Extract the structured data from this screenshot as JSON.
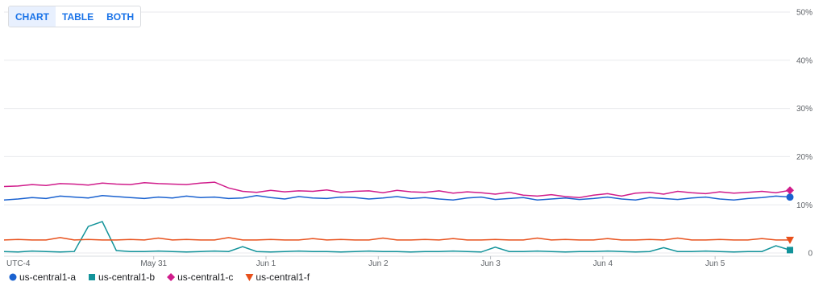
{
  "view_buttons": [
    "CHART",
    "TABLE",
    "BOTH"
  ],
  "selected_view": "CHART",
  "chart_data": {
    "type": "line",
    "timezone_label": "UTC-4",
    "x": [
      0,
      3,
      6,
      9,
      12,
      15,
      18,
      21,
      24,
      27,
      30,
      33,
      36,
      39,
      42,
      45,
      48,
      51,
      54,
      57,
      60,
      63,
      66,
      69,
      72,
      75,
      78,
      81,
      84,
      87,
      90,
      93,
      96,
      99,
      102,
      105,
      108,
      111,
      114,
      117,
      120,
      123,
      126,
      129,
      132,
      135,
      138,
      141,
      144,
      147,
      150,
      153,
      156,
      159,
      162,
      165,
      168
    ],
    "xlim": [
      0,
      168
    ],
    "xticks": [
      {
        "value": 32,
        "label": "May 31"
      },
      {
        "value": 56,
        "label": "Jun 1"
      },
      {
        "value": 80,
        "label": "Jun 2"
      },
      {
        "value": 104,
        "label": "Jun 3"
      },
      {
        "value": 128,
        "label": "Jun 4"
      },
      {
        "value": 152,
        "label": "Jun 5"
      }
    ],
    "ylim": [
      0,
      50
    ],
    "yticks": [
      {
        "value": 0,
        "label": "0"
      },
      {
        "value": 10,
        "label": "10%"
      },
      {
        "value": 20,
        "label": "20%"
      },
      {
        "value": 30,
        "label": "30%"
      },
      {
        "value": 40,
        "label": "40%"
      },
      {
        "value": 50,
        "label": "50%"
      }
    ],
    "grid": true,
    "series": [
      {
        "name": "us-central1-a",
        "color": "#1a62d0",
        "marker": "circle",
        "values": [
          11.0,
          11.2,
          11.5,
          11.3,
          11.8,
          11.6,
          11.4,
          11.9,
          11.7,
          11.5,
          11.3,
          11.6,
          11.4,
          11.8,
          11.5,
          11.6,
          11.3,
          11.4,
          11.9,
          11.5,
          11.2,
          11.7,
          11.4,
          11.3,
          11.6,
          11.5,
          11.2,
          11.4,
          11.7,
          11.3,
          11.5,
          11.2,
          11.0,
          11.4,
          11.6,
          11.1,
          11.3,
          11.5,
          11.0,
          11.2,
          11.4,
          11.1,
          11.3,
          11.6,
          11.2,
          11.0,
          11.5,
          11.3,
          11.1,
          11.4,
          11.6,
          11.2,
          11.0,
          11.3,
          11.5,
          11.8,
          11.6
        ]
      },
      {
        "name": "us-central1-b",
        "color": "#12939a",
        "marker": "square",
        "values": [
          0.3,
          0.2,
          0.4,
          0.3,
          0.2,
          0.3,
          5.5,
          6.5,
          0.5,
          0.3,
          0.3,
          0.4,
          0.3,
          0.2,
          0.3,
          0.4,
          0.3,
          1.3,
          0.3,
          0.2,
          0.3,
          0.4,
          0.3,
          0.3,
          0.2,
          0.3,
          0.4,
          0.3,
          0.3,
          0.2,
          0.3,
          0.3,
          0.4,
          0.3,
          0.2,
          1.2,
          0.3,
          0.3,
          0.4,
          0.3,
          0.2,
          0.3,
          0.3,
          0.4,
          0.3,
          0.2,
          0.3,
          1.1,
          0.3,
          0.3,
          0.4,
          0.3,
          0.2,
          0.3,
          0.3,
          1.5,
          0.6
        ]
      },
      {
        "name": "us-central1-c",
        "color": "#d01c8b",
        "marker": "diamond",
        "values": [
          13.8,
          13.9,
          14.2,
          14.0,
          14.4,
          14.3,
          14.1,
          14.5,
          14.3,
          14.2,
          14.6,
          14.4,
          14.3,
          14.2,
          14.5,
          14.7,
          13.5,
          12.8,
          12.6,
          13.0,
          12.7,
          12.9,
          12.8,
          13.1,
          12.6,
          12.8,
          12.9,
          12.5,
          13.0,
          12.7,
          12.6,
          12.9,
          12.4,
          12.7,
          12.5,
          12.2,
          12.6,
          12.0,
          11.8,
          12.1,
          11.7,
          11.5,
          12.0,
          12.3,
          11.8,
          12.4,
          12.6,
          12.2,
          12.8,
          12.5,
          12.3,
          12.7,
          12.4,
          12.6,
          12.8,
          12.5,
          13.0
        ]
      },
      {
        "name": "us-central1-f",
        "color": "#e8501b",
        "marker": "triangle-down",
        "values": [
          2.7,
          2.8,
          2.7,
          2.7,
          3.2,
          2.7,
          2.8,
          2.7,
          2.7,
          2.8,
          2.7,
          3.1,
          2.7,
          2.8,
          2.7,
          2.7,
          3.2,
          2.7,
          2.7,
          2.8,
          2.7,
          2.7,
          3.0,
          2.7,
          2.8,
          2.7,
          2.7,
          3.1,
          2.7,
          2.7,
          2.8,
          2.7,
          3.0,
          2.7,
          2.7,
          2.8,
          2.7,
          2.7,
          3.1,
          2.7,
          2.8,
          2.7,
          2.7,
          3.0,
          2.7,
          2.7,
          2.8,
          2.7,
          3.1,
          2.7,
          2.7,
          2.8,
          2.7,
          2.7,
          3.0,
          2.7,
          2.7
        ]
      }
    ]
  }
}
